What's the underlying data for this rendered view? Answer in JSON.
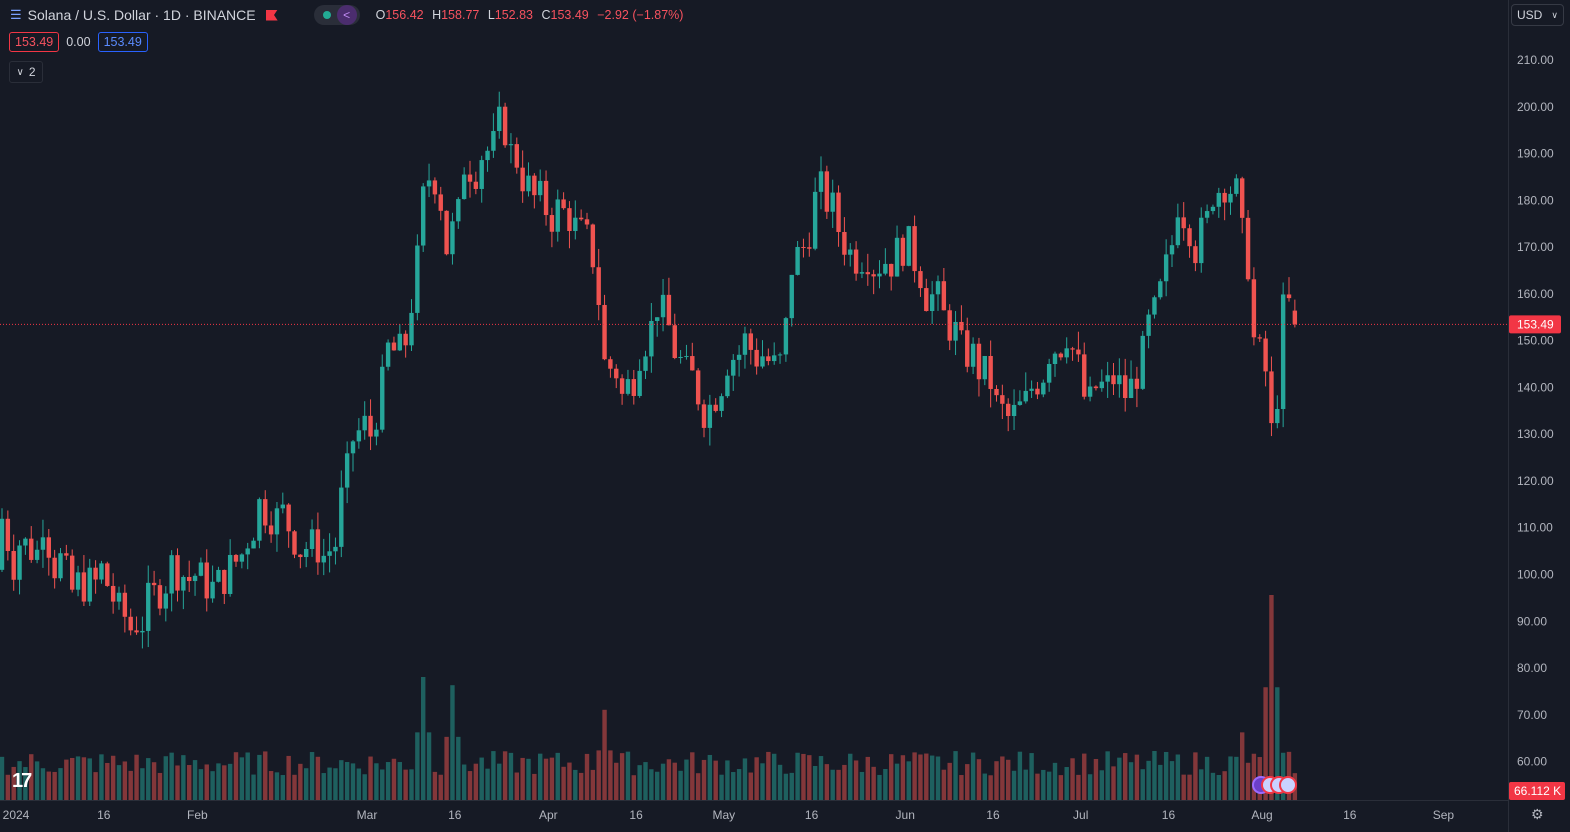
{
  "legend": {
    "title": "Solana / U.S. Dollar · 1D · BINANCE",
    "ohlc": {
      "o_label": "O",
      "o": "156.42",
      "h_label": "H",
      "h": "158.77",
      "l_label": "L",
      "l": "152.83",
      "c_label": "C",
      "c": "153.49",
      "change": "−2.92 (−1.87%)"
    },
    "bid": "153.49",
    "spread": "0.00",
    "ask": "153.49",
    "collapse_label": "2"
  },
  "currency": "USD",
  "price_axis": {
    "ticks": [
      "210.00",
      "200.00",
      "190.00",
      "180.00",
      "170.00",
      "160.00",
      "150.00",
      "140.00",
      "130.00",
      "120.00",
      "110.00",
      "100.00",
      "90.00",
      "80.00",
      "70.00",
      "60.00"
    ],
    "last_price_label": "153.49",
    "volume_label": "66.112 K"
  },
  "time_axis": {
    "labels": [
      "2024",
      "16",
      "Feb",
      "Mar",
      "16",
      "Apr",
      "16",
      "May",
      "16",
      "Jun",
      "16",
      "Jul",
      "16",
      "Aug",
      "16",
      "Sep",
      "16"
    ]
  },
  "colors": {
    "up": "#26a69a",
    "down": "#ef5350",
    "background": "#161a25",
    "last_price": "#f23645"
  },
  "chart_data": {
    "type": "candlestick",
    "title": "Solana / U.S. Dollar · 1D · BINANCE",
    "ylim": [
      54,
      214
    ],
    "grid": false,
    "last_price": 153.49,
    "anchors": [
      [
        "2024-01-01",
        101,
        112
      ],
      [
        "2024-01-04",
        98,
        107
      ],
      [
        "2024-01-08",
        104,
        112
      ],
      [
        "2024-01-11",
        97,
        103
      ],
      [
        "2024-01-14",
        93,
        98
      ],
      [
        "2024-01-18",
        98,
        101
      ],
      [
        "2024-01-22",
        89,
        91
      ],
      [
        "2024-01-24",
        86,
        90
      ],
      [
        "2024-01-26",
        90,
        94
      ],
      [
        "2024-01-30",
        100,
        102
      ],
      [
        "2024-02-03",
        98,
        100
      ],
      [
        "2024-02-07",
        96,
        98
      ],
      [
        "2024-02-12",
        106,
        108
      ],
      [
        "2024-02-14",
        113,
        115
      ],
      [
        "2024-02-18",
        111,
        113
      ],
      [
        "2024-02-22",
        103,
        106
      ],
      [
        "2024-02-25",
        106,
        104
      ],
      [
        "2024-02-28",
        108,
        116
      ],
      [
        "2024-03-01",
        127,
        129
      ],
      [
        "2024-03-04",
        133,
        130
      ],
      [
        "2024-03-07",
        145,
        148
      ],
      [
        "2024-03-10",
        147,
        150
      ],
      [
        "2024-03-13",
        175,
        180
      ],
      [
        "2024-03-15",
        190,
        185
      ],
      [
        "2024-03-17",
        175,
        170
      ],
      [
        "2024-03-20",
        180,
        188
      ],
      [
        "2024-03-23",
        186,
        190
      ],
      [
        "2024-03-26",
        192,
        196
      ],
      [
        "2024-03-28",
        195,
        190
      ],
      [
        "2024-03-30",
        188,
        185
      ],
      [
        "2024-04-02",
        178,
        180
      ],
      [
        "2024-04-05",
        175,
        178
      ],
      [
        "2024-04-08",
        176,
        174
      ],
      [
        "2024-04-11",
        170,
        168
      ],
      [
        "2024-04-13",
        150,
        145
      ],
      [
        "2024-04-16",
        143,
        138
      ],
      [
        "2024-04-19",
        145,
        148
      ],
      [
        "2024-04-22",
        155,
        158
      ],
      [
        "2024-04-25",
        150,
        148
      ],
      [
        "2024-04-28",
        140,
        142
      ],
      [
        "2024-05-01",
        132,
        136
      ],
      [
        "2024-05-04",
        144,
        146
      ],
      [
        "2024-05-07",
        148,
        150
      ],
      [
        "2024-05-10",
        145,
        147
      ],
      [
        "2024-05-13",
        143,
        145
      ],
      [
        "2024-05-15",
        160,
        166
      ],
      [
        "2024-05-18",
        172,
        174
      ],
      [
        "2024-05-20",
        186,
        182
      ],
      [
        "2024-05-23",
        176,
        174
      ],
      [
        "2024-05-26",
        166,
        168
      ],
      [
        "2024-05-29",
        169,
        166
      ],
      [
        "2024-06-01",
        168,
        167
      ],
      [
        "2024-06-04",
        172,
        170
      ],
      [
        "2024-06-07",
        162,
        160
      ],
      [
        "2024-06-10",
        158,
        155
      ],
      [
        "2024-06-13",
        150,
        148
      ],
      [
        "2024-06-16",
        146,
        144
      ],
      [
        "2024-06-19",
        140,
        136
      ],
      [
        "2024-06-22",
        132,
        134
      ],
      [
        "2024-06-25",
        138,
        140
      ],
      [
        "2024-06-28",
        145,
        148
      ],
      [
        "2024-07-01",
        150,
        152
      ],
      [
        "2024-07-04",
        140,
        138
      ],
      [
        "2024-07-06",
        135,
        140
      ],
      [
        "2024-07-09",
        140,
        142
      ],
      [
        "2024-07-12",
        137,
        140
      ],
      [
        "2024-07-15",
        150,
        153
      ],
      [
        "2024-07-17",
        158,
        160
      ],
      [
        "2024-07-20",
        176,
        180
      ],
      [
        "2024-07-23",
        172,
        170
      ],
      [
        "2024-07-26",
        178,
        182
      ],
      [
        "2024-07-28",
        183,
        184
      ],
      [
        "2024-07-31",
        180,
        172
      ],
      [
        "2024-08-02",
        162,
        150
      ],
      [
        "2024-08-05",
        140,
        130
      ],
      [
        "2024-08-07",
        148,
        156
      ],
      [
        "2024-08-09",
        159,
        156.42
      ]
    ],
    "volume_peaks": [
      [
        "2024-03-13",
        0.6
      ],
      [
        "2024-03-18",
        0.56
      ],
      [
        "2024-04-13",
        0.44
      ],
      [
        "2024-07-31",
        0.33
      ],
      [
        "2024-08-05",
        1.0
      ]
    ]
  }
}
